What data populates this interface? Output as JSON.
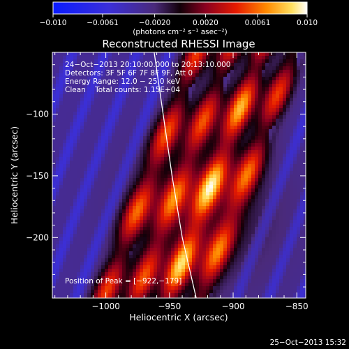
{
  "chart_data": {
    "type": "heatmap",
    "title": "Reconstructed RHESSI Image",
    "xlabel": "Heliocentric X (arcsec)",
    "ylabel": "Heliocentric Y (arcsec)",
    "xlim": [
      -1042,
      -843
    ],
    "ylim": [
      -249,
      -50
    ],
    "x_ticks": [
      {
        "value": -1000,
        "label": "−1000"
      },
      {
        "value": -950,
        "label": "−950"
      },
      {
        "value": -900,
        "label": "−900"
      },
      {
        "value": -850,
        "label": "−850"
      }
    ],
    "y_ticks": [
      {
        "value": -100,
        "label": "−100"
      },
      {
        "value": -150,
        "label": "−150"
      },
      {
        "value": -200,
        "label": "−200"
      }
    ],
    "colorbar": {
      "min": -0.01,
      "max": 0.01,
      "ticks": [
        {
          "value": -0.01,
          "label": "−0.010"
        },
        {
          "value": -0.0061,
          "label": "−0.0061"
        },
        {
          "value": -0.002,
          "label": "−0.0020"
        },
        {
          "value": 0.002,
          "label": "0.0020"
        },
        {
          "value": 0.0061,
          "label": "0.0061"
        },
        {
          "value": 0.01,
          "label": "0.010"
        }
      ],
      "unit_label": "(photons cm⁻² s⁻¹ asec⁻²)"
    },
    "info_lines": [
      "24−Oct−2013 20:10:00.000 to 20:13:10.000",
      "Detectors: 3F 5F 6F 7F 8F 9F, Att 0",
      "Energy Range: 12.0 − 25.0 keV",
      "Clean    Total counts: 1.15E+04"
    ],
    "peak_label": "Position of Peak = [−922,−179]",
    "peak": {
      "x": -922,
      "y": -179
    },
    "limb_curve": [
      [
        -962,
        -50
      ],
      [
        -955,
        -100
      ],
      [
        -948,
        -150
      ],
      [
        -940,
        -200
      ],
      [
        -929,
        -249
      ]
    ],
    "stripe_offsets": [
      -98,
      -52,
      -6,
      40
    ],
    "timestamp": "25−Oct−2013 15:32"
  }
}
